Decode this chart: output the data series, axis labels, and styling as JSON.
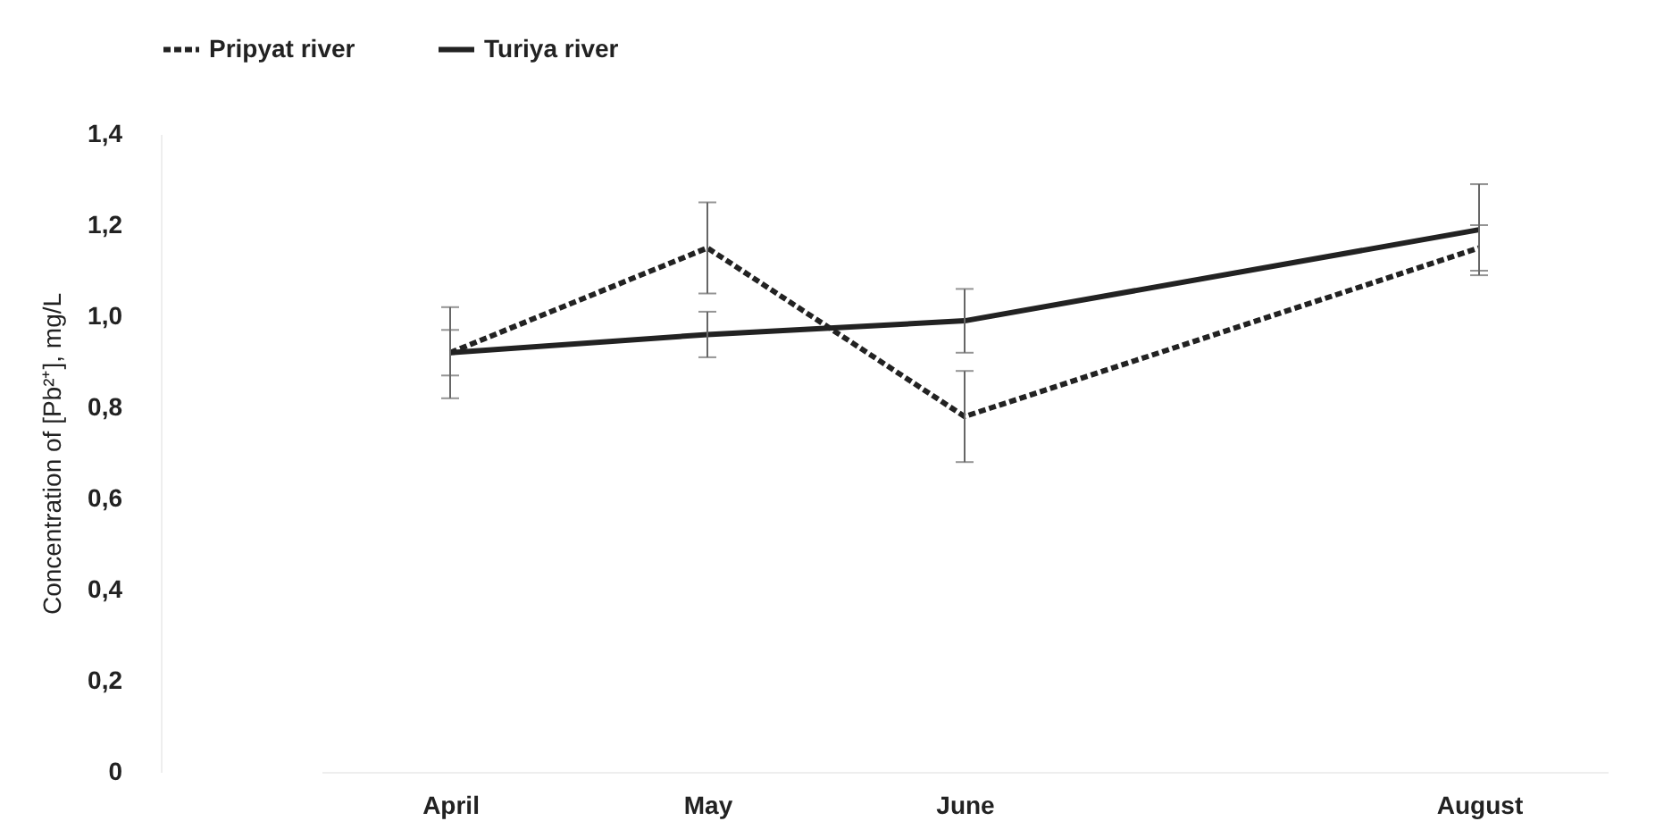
{
  "chart_data": {
    "type": "line",
    "ylabel": "Concentration of [Pb²⁺], mg/L",
    "categories": [
      "April",
      "May",
      "June",
      null,
      "August"
    ],
    "series": [
      {
        "name": "Pripyat river",
        "color": "#222222",
        "line_style": "dashed",
        "values": [
          0.92,
          1.15,
          0.78,
          null,
          1.15
        ],
        "errors": [
          0.1,
          0.1,
          0.1,
          null,
          0.05
        ]
      },
      {
        "name": "Turiya river",
        "color": "#222222",
        "line_style": "solid",
        "values": [
          0.92,
          0.96,
          0.99,
          null,
          1.19
        ],
        "errors": [
          0.05,
          0.05,
          0.07,
          null,
          0.1
        ]
      }
    ],
    "ylim": [
      0,
      1.4
    ],
    "yticks": [
      0,
      {
        "value": 0.2,
        "label": "0,2"
      },
      {
        "value": 0.4,
        "label": "0,4"
      },
      {
        "value": 0.6,
        "label": "0,6"
      },
      {
        "value": 0.8,
        "label": "0,8"
      },
      {
        "value": 1.0,
        "label": "1,0"
      },
      {
        "value": 1.2,
        "label": "1,2"
      },
      {
        "value": 1.4,
        "label": "1,4"
      }
    ],
    "legend": "top",
    "grid": false
  }
}
